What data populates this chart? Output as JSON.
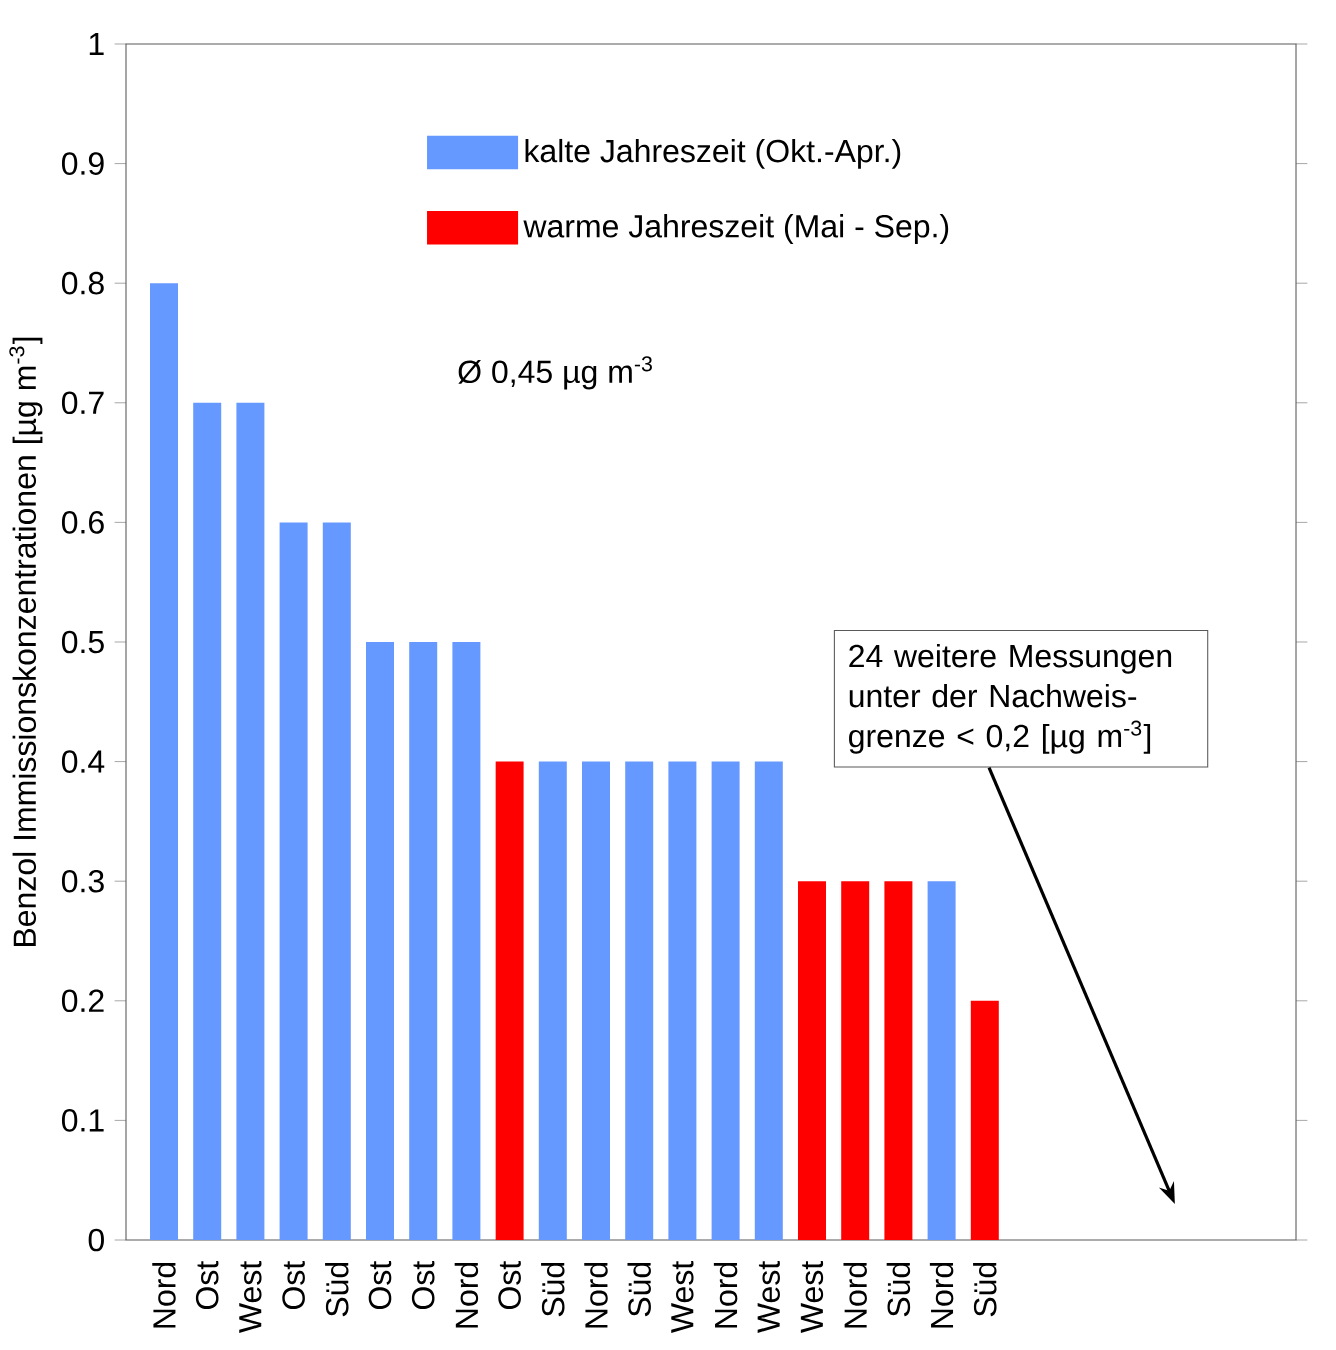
{
  "chart_data": {
    "type": "bar",
    "ylabel": "Benzol Immissionskonzentrationen [µg m$^{-3}$]",
    "categories": [
      "Nord",
      "Ost",
      "West",
      "Ost",
      "Süd",
      "Ost",
      "Ost",
      "Nord",
      "Ost",
      "Süd",
      "Nord",
      "Süd",
      "West",
      "Nord",
      "West",
      "West",
      "Nord",
      "Süd",
      "Nord",
      "Süd"
    ],
    "series": [
      {
        "name": "kalte Jahreszeit (Okt.-Apr.)",
        "color": "#6699ff",
        "values": [
          0.8,
          0.7,
          0.7,
          0.6,
          0.6,
          0.5,
          0.5,
          0.5,
          null,
          0.4,
          0.4,
          0.4,
          0.4,
          0.4,
          0.4,
          null,
          null,
          null,
          0.3,
          null
        ]
      },
      {
        "name": "warme Jahreszeit (Mai - Sep.)",
        "color": "#ff0000",
        "values": [
          null,
          null,
          null,
          null,
          null,
          null,
          null,
          null,
          0.4,
          null,
          null,
          null,
          null,
          null,
          null,
          0.3,
          0.3,
          0.3,
          null,
          0.2
        ]
      }
    ],
    "ylim": [
      0,
      1
    ],
    "yticks": [
      0,
      0.1,
      0.2,
      0.3,
      0.4,
      0.5,
      0.6,
      0.7,
      0.8,
      0.9,
      1
    ],
    "legend": "top",
    "annotations": [
      "Ø 0,45 µg m$^{-3}$",
      "24 weitere Messungen unter der Nachweis-grenze < 0,2 [µg m$^{-3}$]"
    ]
  }
}
